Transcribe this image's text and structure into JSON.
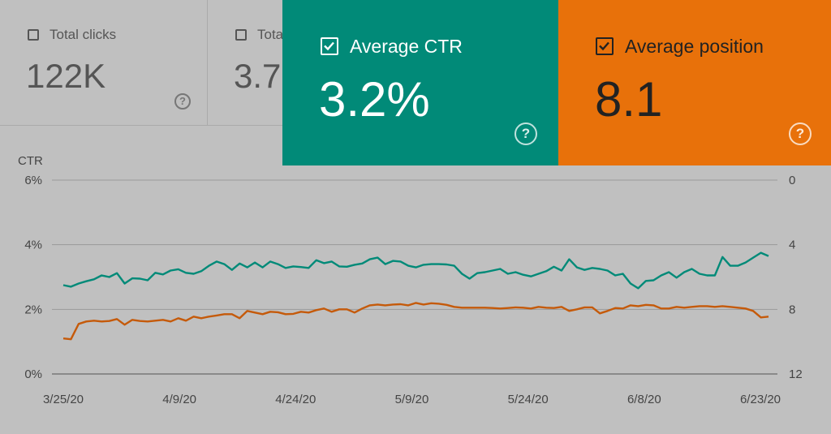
{
  "cards": {
    "total_clicks": {
      "label": "Total clicks",
      "value": "122K",
      "help": "?"
    },
    "total_impressions": {
      "label": "Total impressions",
      "value": "3.7",
      "help": "?"
    },
    "average_ctr": {
      "label": "Average CTR",
      "value": "3.2%",
      "help": "?",
      "color": "#018a78"
    },
    "average_position": {
      "label": "Average position",
      "value": "8.1",
      "help": "?",
      "color": "#e8710a"
    }
  },
  "chart_data": {
    "type": "line",
    "ylabel_left": "CTR",
    "y_left_ticks": [
      "6%",
      "4%",
      "2%",
      "0%"
    ],
    "y_left_range": [
      0,
      6
    ],
    "y_right_ticks": [
      "0",
      "4",
      "8",
      "12"
    ],
    "y_right_range": [
      12,
      0
    ],
    "x_tick_labels": [
      "3/25/20",
      "4/9/20",
      "4/24/20",
      "5/9/20",
      "5/24/20",
      "6/8/20",
      "6/23/20"
    ],
    "x_range_days": [
      0,
      90
    ],
    "series": [
      {
        "name": "Average CTR",
        "axis": "left",
        "color": "#018a78",
        "unit": "%",
        "values": [
          2.75,
          2.7,
          2.8,
          2.87,
          2.93,
          3.05,
          3.0,
          3.12,
          2.8,
          2.96,
          2.95,
          2.9,
          3.13,
          3.08,
          3.2,
          3.24,
          3.13,
          3.1,
          3.18,
          3.35,
          3.48,
          3.4,
          3.22,
          3.42,
          3.3,
          3.45,
          3.3,
          3.48,
          3.4,
          3.28,
          3.33,
          3.31,
          3.28,
          3.52,
          3.43,
          3.48,
          3.33,
          3.32,
          3.38,
          3.42,
          3.55,
          3.6,
          3.4,
          3.5,
          3.48,
          3.35,
          3.3,
          3.38,
          3.4,
          3.4,
          3.39,
          3.35,
          3.1,
          2.95,
          3.12,
          3.15,
          3.2,
          3.25,
          3.1,
          3.15,
          3.07,
          3.02,
          3.1,
          3.18,
          3.32,
          3.2,
          3.55,
          3.3,
          3.22,
          3.28,
          3.25,
          3.2,
          3.05,
          3.1,
          2.8,
          2.65,
          2.88,
          2.9,
          3.05,
          3.15,
          2.98,
          3.15,
          3.25,
          3.1,
          3.05,
          3.05,
          3.62,
          3.35,
          3.35,
          3.45,
          3.6,
          3.75,
          3.65
        ]
      },
      {
        "name": "Average position",
        "axis": "right",
        "color": "#c55a0a",
        "unit": "",
        "values": [
          9.8,
          9.85,
          8.9,
          8.75,
          8.7,
          8.75,
          8.72,
          8.6,
          8.95,
          8.65,
          8.72,
          8.75,
          8.7,
          8.65,
          8.75,
          8.55,
          8.7,
          8.45,
          8.55,
          8.45,
          8.38,
          8.3,
          8.3,
          8.55,
          8.1,
          8.2,
          8.3,
          8.15,
          8.18,
          8.3,
          8.28,
          8.15,
          8.2,
          8.05,
          7.95,
          8.15,
          8.0,
          8.0,
          8.2,
          7.95,
          7.75,
          7.7,
          7.75,
          7.7,
          7.68,
          7.75,
          7.6,
          7.7,
          7.62,
          7.65,
          7.72,
          7.85,
          7.9,
          7.9,
          7.9,
          7.9,
          7.92,
          7.95,
          7.92,
          7.88,
          7.9,
          7.95,
          7.85,
          7.9,
          7.92,
          7.85,
          8.1,
          8.0,
          7.88,
          7.88,
          8.25,
          8.1,
          7.92,
          7.95,
          7.75,
          7.8,
          7.72,
          7.75,
          7.95,
          7.95,
          7.85,
          7.9,
          7.85,
          7.8,
          7.8,
          7.85,
          7.8,
          7.85,
          7.9,
          7.95,
          8.1,
          8.5,
          8.45
        ]
      }
    ]
  }
}
